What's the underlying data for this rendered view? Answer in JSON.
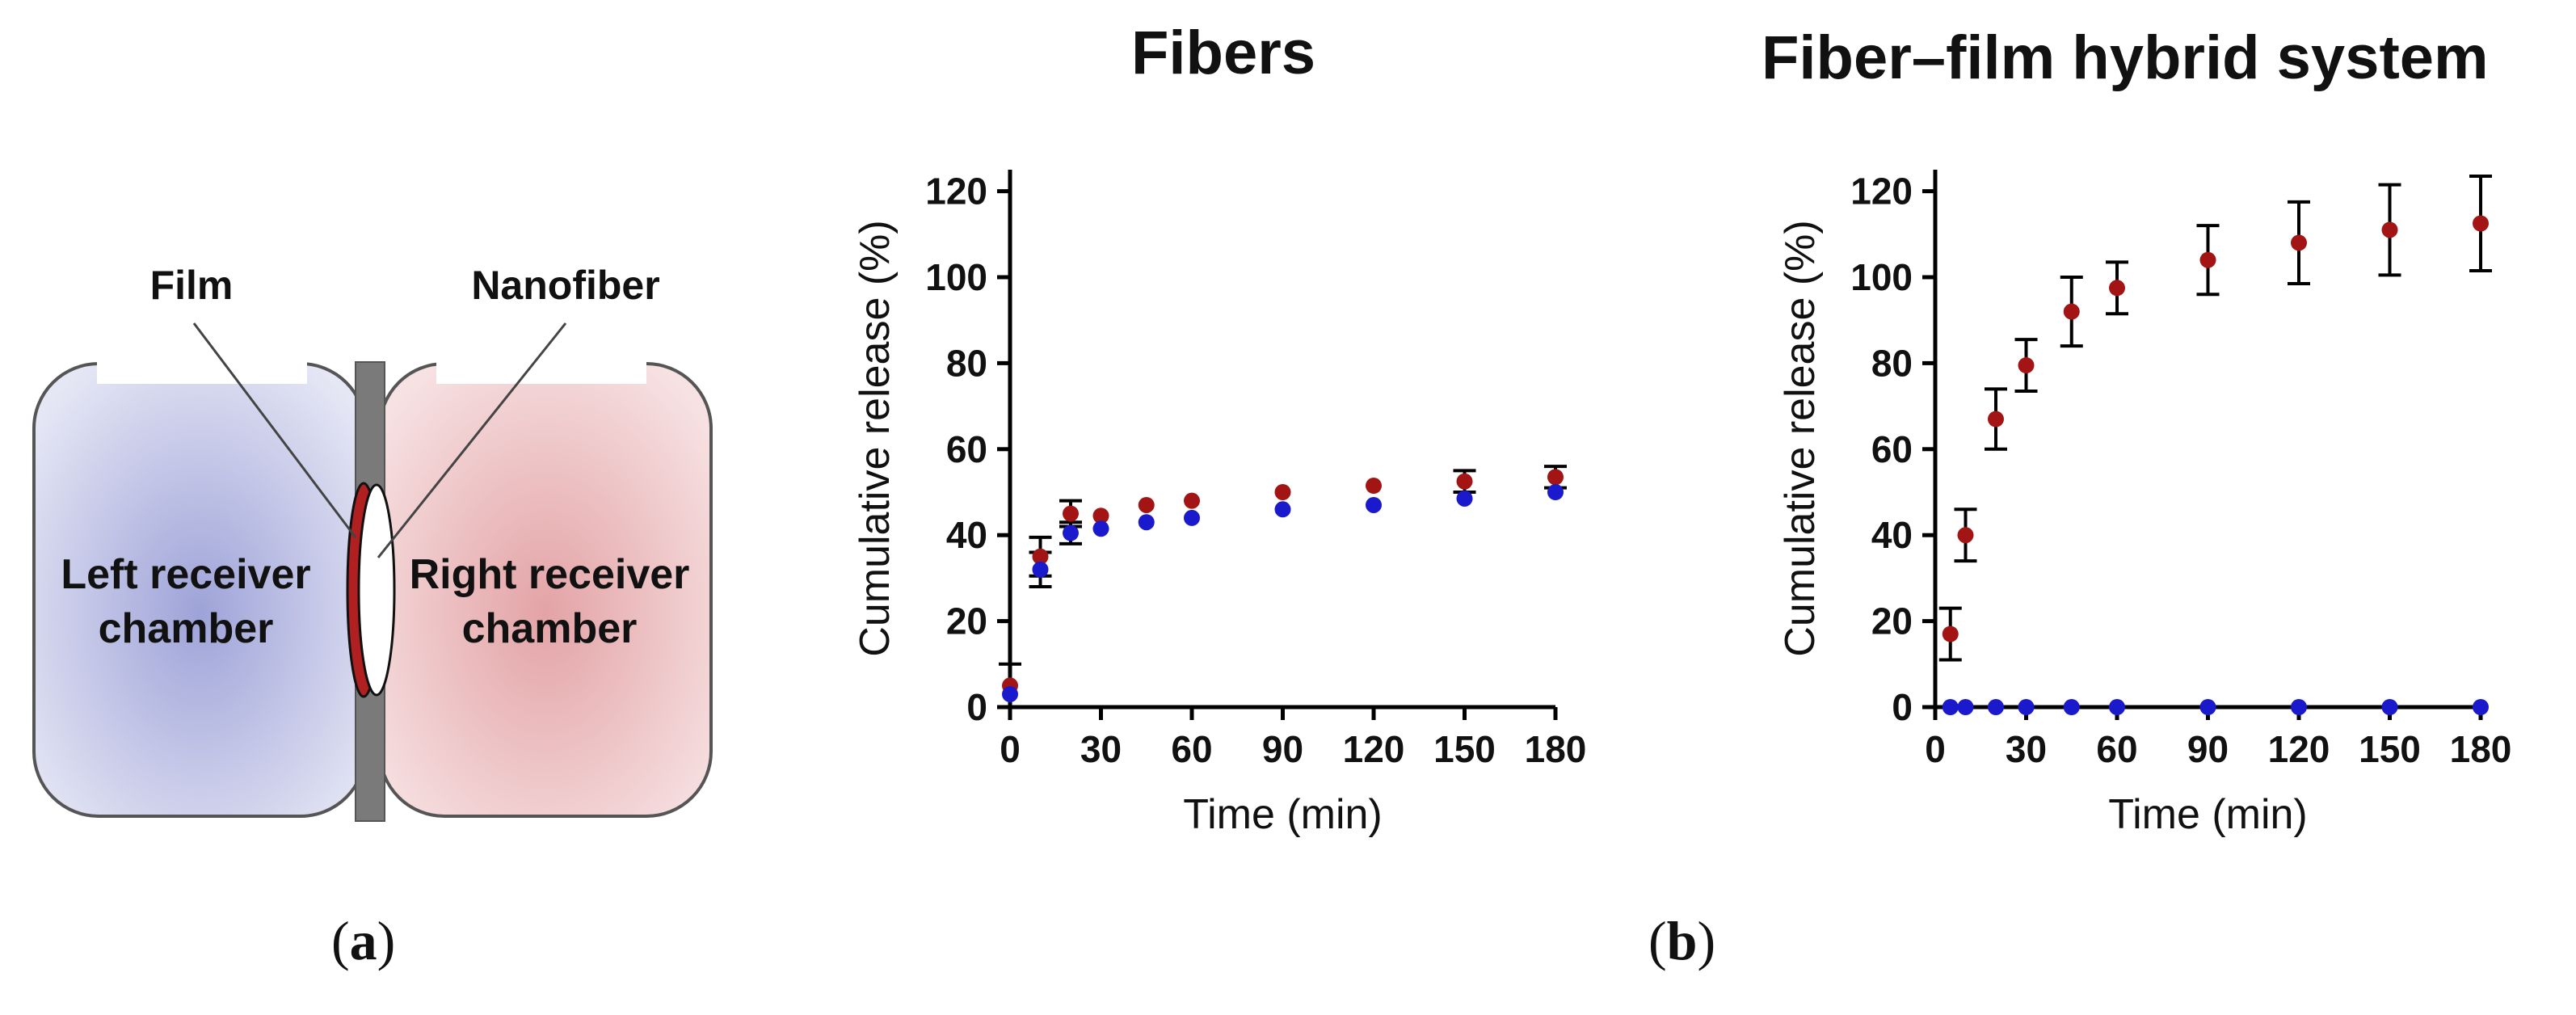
{
  "panel_a": {
    "label_open": "(",
    "label_letter": "a",
    "label_close": ")",
    "film_label": "Film",
    "nanofiber_label": "Nanofiber",
    "left_chamber_line1": "Left receiver",
    "left_chamber_line2": "chamber",
    "right_chamber_line1": "Right receiver",
    "right_chamber_line2": "chamber",
    "colors": {
      "left_chamber": "#9ea3d8",
      "right_chamber": "#e3a3a6",
      "membrane_red": "#b02020",
      "separator": "#7a7a7a"
    }
  },
  "panel_b": {
    "label_open": "(",
    "label_letter": "b",
    "label_close": ")"
  },
  "colors": {
    "red_series": "#a31515",
    "blue_series": "#1a1acc",
    "axis": "#000000"
  },
  "chart_data": [
    {
      "type": "scatter",
      "title": "Fibers",
      "xlabel": "Time (min)",
      "ylabel": "Cumulative release (%)",
      "xlim": [
        0,
        180
      ],
      "ylim": [
        0,
        125
      ],
      "xticks": [
        0,
        30,
        60,
        90,
        120,
        150,
        180
      ],
      "yticks": [
        0,
        20,
        40,
        60,
        80,
        100,
        120
      ],
      "series": [
        {
          "name": "red",
          "color": "#a31515",
          "x": [
            0,
            10,
            20,
            30,
            45,
            60,
            90,
            120,
            150,
            180
          ],
          "y": [
            5,
            35,
            45,
            44.5,
            47,
            48,
            50,
            51.5,
            52.5,
            53.5
          ],
          "err": [
            5,
            4.5,
            3,
            0,
            0,
            0,
            0,
            0,
            2.5,
            2.5
          ]
        },
        {
          "name": "blue",
          "color": "#1a1acc",
          "x": [
            0,
            10,
            20,
            30,
            45,
            60,
            90,
            120,
            150,
            180
          ],
          "y": [
            3,
            32,
            40.5,
            41.5,
            43,
            44,
            46,
            47,
            48.5,
            50
          ],
          "err": [
            0,
            4,
            2.5,
            0,
            0,
            0,
            0,
            0,
            0,
            0
          ]
        }
      ]
    },
    {
      "type": "scatter",
      "title": "Fiber–film hybrid system",
      "xlabel": "Time (min)",
      "ylabel": "Cumulative release (%)",
      "xlim": [
        0,
        180
      ],
      "ylim": [
        0,
        125
      ],
      "xticks": [
        0,
        30,
        60,
        90,
        120,
        150,
        180
      ],
      "yticks": [
        0,
        20,
        40,
        60,
        80,
        100,
        120
      ],
      "series": [
        {
          "name": "red",
          "color": "#a31515",
          "x": [
            5,
            10,
            20,
            30,
            45,
            60,
            90,
            120,
            150,
            180
          ],
          "y": [
            17,
            40,
            67,
            79.5,
            92,
            97.5,
            104,
            108,
            111,
            112.5
          ],
          "err": [
            6,
            6,
            7,
            6,
            8,
            6,
            8,
            9.5,
            10.5,
            11
          ]
        },
        {
          "name": "blue",
          "color": "#1a1acc",
          "x": [
            5,
            10,
            20,
            30,
            45,
            60,
            90,
            120,
            150,
            180
          ],
          "y": [
            0,
            0,
            0,
            0,
            0,
            0,
            0,
            0,
            0,
            0
          ],
          "err": [
            0,
            0,
            0,
            0,
            0,
            0,
            0,
            0,
            0,
            0
          ]
        }
      ]
    }
  ]
}
